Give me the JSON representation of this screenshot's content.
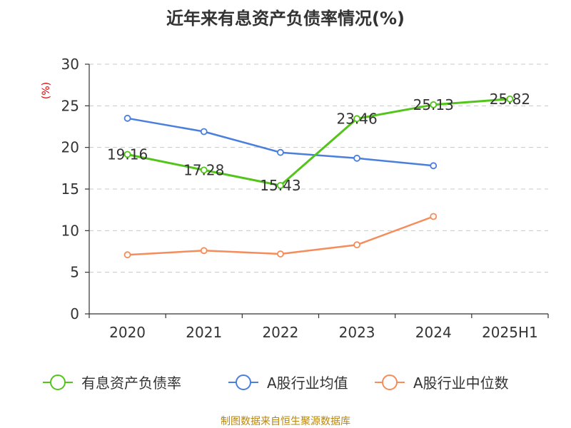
{
  "chart_data": {
    "type": "line",
    "title": "近年来有息资产负债率情况(%)",
    "unit_label": "(%)",
    "categories": [
      "2020",
      "2021",
      "2022",
      "2023",
      "2024",
      "2025H1"
    ],
    "ylim": [
      0,
      30
    ],
    "yticks": [
      0,
      5,
      10,
      15,
      20,
      25,
      30
    ],
    "grid": true,
    "legend_position": "bottom",
    "series": [
      {
        "name": "有息资产负债率",
        "color": "#52c41a",
        "values": [
          19.16,
          17.28,
          15.43,
          23.46,
          25.13,
          25.82
        ],
        "labels": [
          "19.16",
          "17.28",
          "15.43",
          "23.46",
          "25.13",
          "25.82"
        ]
      },
      {
        "name": "A股行业均值",
        "color": "#4a7fdc",
        "values": [
          23.5,
          21.9,
          19.4,
          18.7,
          17.8,
          null
        ]
      },
      {
        "name": "A股行业中位数",
        "color": "#f58c5a",
        "values": [
          7.1,
          7.6,
          7.2,
          8.3,
          11.7,
          null
        ]
      }
    ],
    "source": "制图数据来自恒生聚源数据库"
  }
}
